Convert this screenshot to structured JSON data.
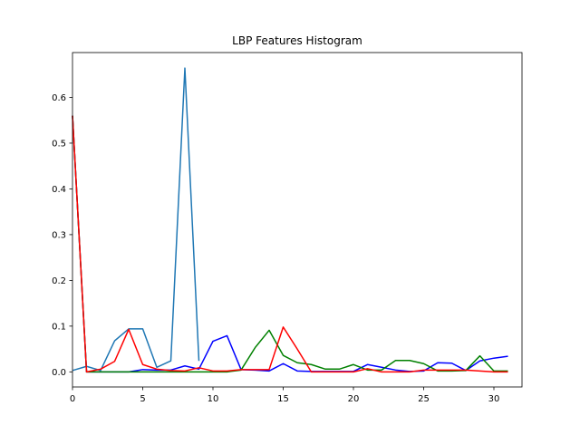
{
  "chart_data": {
    "type": "line",
    "title": "LBP Features Histogram",
    "xlabel": "",
    "ylabel": "",
    "xlim": [
      0,
      32
    ],
    "ylim": [
      -0.033,
      0.698
    ],
    "xticks": [
      0,
      5,
      10,
      15,
      20,
      25,
      30
    ],
    "yticks": [
      0.0,
      0.1,
      0.2,
      0.3,
      0.4,
      0.5,
      0.6
    ],
    "grid": false,
    "legend": "none",
    "series": [
      {
        "color": "#1f77b4",
        "x": [
          0,
          1,
          2,
          3,
          4,
          5,
          6,
          7,
          8,
          9
        ],
        "y": [
          0.003,
          0.012,
          0.003,
          0.068,
          0.094,
          0.094,
          0.01,
          0.024,
          0.664,
          0.024
        ]
      },
      {
        "color": "#0000ff",
        "x": [
          0,
          1,
          2,
          3,
          4,
          5,
          6,
          7,
          8,
          9,
          10,
          11,
          12,
          13,
          14,
          15,
          16,
          17,
          18,
          19,
          20,
          21,
          22,
          23,
          24,
          25,
          26,
          27,
          28,
          29,
          30,
          31
        ],
        "y": [
          0.56,
          0.0,
          0.0,
          0.0,
          0.0,
          0.005,
          0.004,
          0.004,
          0.013,
          0.006,
          0.067,
          0.079,
          0.005,
          0.004,
          0.002,
          0.018,
          0.002,
          0.001,
          0.001,
          0.001,
          0.001,
          0.016,
          0.01,
          0.004,
          0.001,
          0.002,
          0.02,
          0.019,
          0.003,
          0.024,
          0.03,
          0.034
        ]
      },
      {
        "color": "#008000",
        "x": [
          0,
          1,
          2,
          3,
          4,
          5,
          6,
          7,
          8,
          9,
          10,
          11,
          12,
          13,
          14,
          15,
          16,
          17,
          18,
          19,
          20,
          21,
          22,
          23,
          24,
          25,
          26,
          27,
          28,
          29,
          30,
          31
        ],
        "y": [
          0.56,
          0.0,
          0.0,
          0.0,
          0.0,
          0.0,
          0.0,
          0.0,
          0.0,
          0.0,
          0.0,
          0.0,
          0.004,
          0.053,
          0.091,
          0.036,
          0.02,
          0.016,
          0.006,
          0.006,
          0.016,
          0.004,
          0.004,
          0.025,
          0.025,
          0.018,
          0.002,
          0.002,
          0.003,
          0.035,
          0.002,
          0.002
        ]
      },
      {
        "color": "#ff0000",
        "x": [
          0,
          1,
          2,
          3,
          4,
          5,
          6,
          7,
          8,
          9,
          10,
          11,
          12,
          13,
          14,
          15,
          16,
          17,
          18,
          19,
          20,
          21,
          22,
          23,
          24,
          25,
          26,
          27,
          28,
          29,
          30,
          31
        ],
        "y": [
          0.56,
          0.0,
          0.006,
          0.023,
          0.093,
          0.016,
          0.006,
          0.003,
          0.002,
          0.009,
          0.002,
          0.002,
          0.005,
          0.005,
          0.005,
          0.098,
          0.05,
          0.0,
          0.0,
          0.0,
          0.0,
          0.007,
          0.0,
          0.0,
          0.0,
          0.004,
          0.004,
          0.004,
          0.004,
          0.002,
          0.0,
          0.0
        ]
      }
    ]
  }
}
